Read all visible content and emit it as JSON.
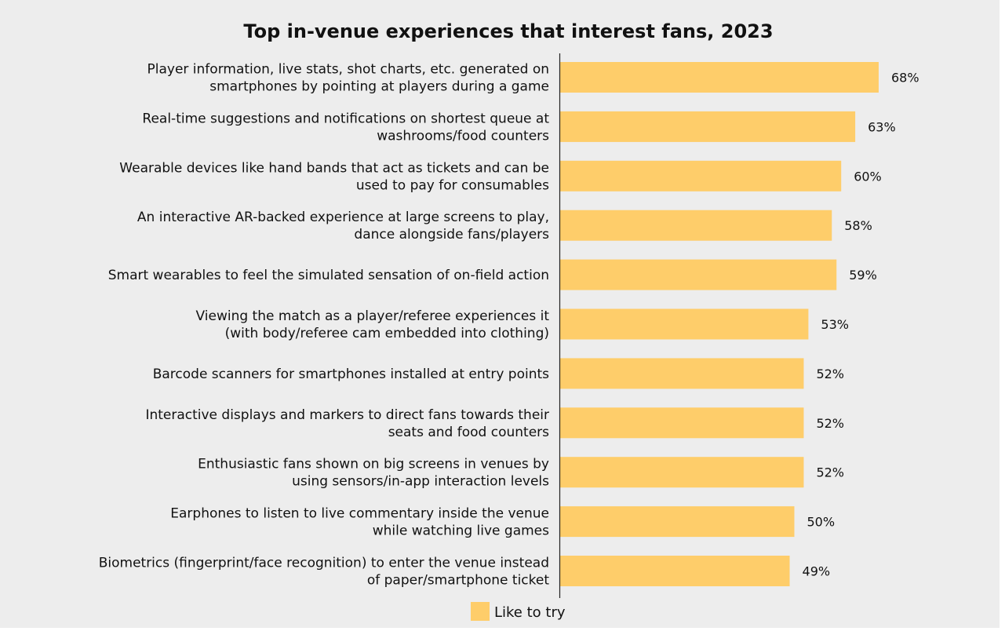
{
  "chart_data": {
    "type": "bar",
    "orientation": "horizontal",
    "title": "Top in-venue experiences that interest fans, 2023",
    "categories": [
      [
        "Player information, live stats, shot charts, etc. generated on",
        "smartphones by pointing at players during a game"
      ],
      [
        "Real-time suggestions and notifications on shortest queue at",
        "washrooms/food counters"
      ],
      [
        "Wearable devices like hand bands that act as tickets and can be",
        "used to pay for consumables"
      ],
      [
        "An interactive AR-backed experience at large screens to play,",
        "dance alongside fans/players"
      ],
      [
        "Smart wearables to feel the simulated sensation of on-field action"
      ],
      [
        "Viewing the match as a player/referee experiences it",
        "(with body/referee cam embedded into clothing)"
      ],
      [
        "Barcode scanners for smartphones installed at entry points"
      ],
      [
        "Interactive displays and markers to direct fans towards their",
        "seats and food counters"
      ],
      [
        "Enthusiastic fans shown on big screens in venues by",
        "using sensors/in-app interaction levels"
      ],
      [
        "Earphones to listen to live commentary inside the venue",
        "while watching live games"
      ],
      [
        "Biometrics (fingerprint/face recognition) to enter the venue instead",
        "of paper/smartphone ticket"
      ]
    ],
    "series": [
      {
        "name": "Like to try",
        "color": "#fecd6a",
        "values": [
          68,
          63,
          60,
          58,
          59,
          53,
          52,
          52,
          52,
          50,
          49
        ],
        "labels": [
          "68%",
          "63%",
          "60%",
          "58%",
          "59%",
          "53%",
          "52%",
          "52%",
          "52%",
          "50%",
          "49%"
        ]
      }
    ],
    "xlim": [
      0,
      100
    ],
    "legend": "bottom",
    "grid": false
  }
}
